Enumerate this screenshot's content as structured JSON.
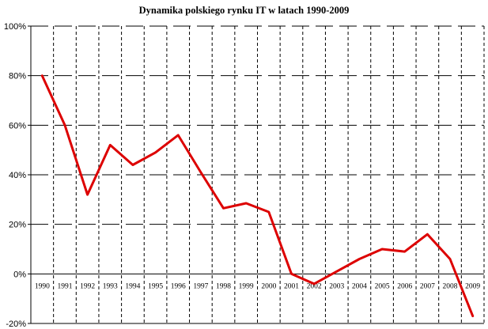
{
  "chart_data": {
    "type": "line",
    "title": "Dynamika polskiego rynku IT w latach 1990-2009",
    "xlabel": "",
    "ylabel": "",
    "x": [
      "1990",
      "1991",
      "1992",
      "1993",
      "1994",
      "1995",
      "1996",
      "1997",
      "1998",
      "1999",
      "2000",
      "2001",
      "2002",
      "2003",
      "2004",
      "2005",
      "2006",
      "2007",
      "2008",
      "2009"
    ],
    "series": [
      {
        "values": [
          80,
          60,
          32,
          52,
          44,
          49,
          56,
          41,
          26.5,
          28.5,
          25,
          0,
          -4,
          1,
          6,
          10,
          9,
          16,
          6,
          -17
        ]
      }
    ],
    "yticks": [
      "-20%",
      "0%",
      "20%",
      "40%",
      "60%",
      "80%",
      "100%"
    ],
    "ylim": [
      -20,
      100
    ],
    "grid": true,
    "line_color": "#dd0000"
  }
}
